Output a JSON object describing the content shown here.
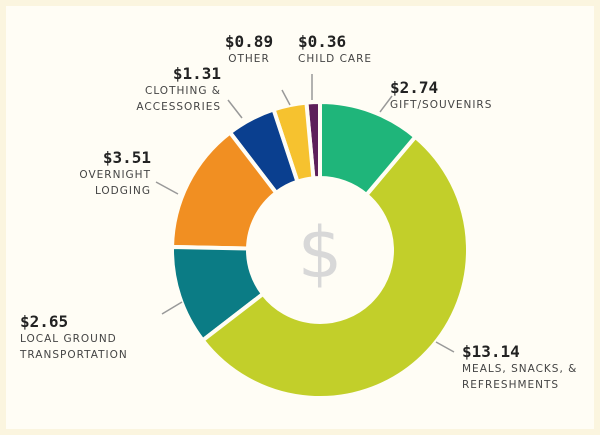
{
  "chart_data": {
    "type": "donut",
    "categories": [
      "GIFT/SOUVENIRS",
      "MEALS, SNACKS, & REFRESHMENTS",
      "LOCAL GROUND TRANSPORTATION",
      "OVERNIGHT LODGING",
      "CLOTHING & ACCESSORIES",
      "OTHER",
      "CHILD CARE"
    ],
    "values": [
      2.74,
      13.14,
      2.65,
      3.51,
      1.31,
      0.89,
      0.36
    ],
    "value_labels": [
      "$2.74",
      "$13.14",
      "$2.65",
      "$3.51",
      "$1.31",
      "$0.89",
      "$0.36"
    ],
    "colors": [
      "#1fb57a",
      "#c2cf2a",
      "#0b7c85",
      "#f18f22",
      "#0a3f8f",
      "#f6c22f",
      "#5d1f5a"
    ],
    "center_label": "$"
  }
}
